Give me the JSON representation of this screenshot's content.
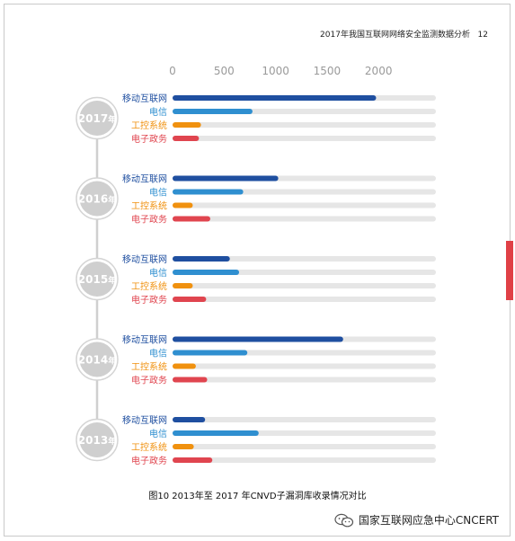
{
  "header": {
    "title": "2017年我国互联网网络安全监测数据分析",
    "page_number": "12"
  },
  "caption": "图10 2013年至 2017 年CNVD子漏洞库收录情况对比",
  "footer": {
    "brand": "国家互联网应急中心CNCERT",
    "icon": "wechat-icon"
  },
  "colors": {
    "mobile": "#1f4fa0",
    "telecom": "#2f8fd0",
    "industrial": "#f0910f",
    "egov": "#e0454f",
    "track": "#e6e6e6",
    "year_circle": "#cfcfcf",
    "accent_tab": "#e04046"
  },
  "chart_data": {
    "type": "bar",
    "orientation": "horizontal",
    "x_ticks": [
      "0",
      "500",
      "1000",
      "1500",
      "2000"
    ],
    "xlim": [
      0,
      2530
    ],
    "series_names": [
      "移动互联网",
      "电信",
      "工控系统",
      "电子政务"
    ],
    "groups": [
      {
        "year": "2017",
        "suffix": "年",
        "values": [
          1950,
          750,
          250,
          230
        ]
      },
      {
        "year": "2016",
        "suffix": "年",
        "values": [
          1000,
          660,
          170,
          340
        ]
      },
      {
        "year": "2015",
        "suffix": "年",
        "values": [
          530,
          620,
          170,
          300
        ]
      },
      {
        "year": "2014",
        "suffix": "年",
        "values": [
          1630,
          700,
          200,
          310
        ]
      },
      {
        "year": "2013",
        "suffix": "年",
        "values": [
          290,
          810,
          180,
          360
        ]
      }
    ]
  }
}
